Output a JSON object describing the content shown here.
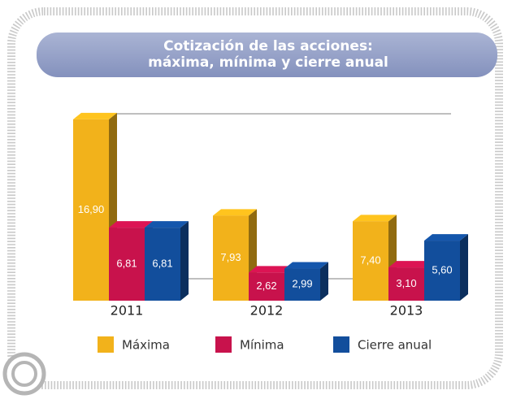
{
  "chart_data": {
    "type": "bar3d",
    "title_lines": [
      "Cotización de las acciones:",
      "máxima, mínima y cierre anual"
    ],
    "categories": [
      "2011",
      "2012",
      "2013"
    ],
    "series": [
      {
        "name": "Máxima",
        "color": "#f2b21b",
        "values": [
          16.9,
          7.93,
          7.4
        ],
        "value_labels": [
          "16,90",
          "7,93",
          "7,40"
        ]
      },
      {
        "name": "Mínima",
        "color": "#c8124c",
        "values": [
          6.81,
          2.62,
          3.1
        ],
        "value_labels": [
          "6,81",
          "2,62",
          "3,10"
        ]
      },
      {
        "name": "Cierre anual",
        "color": "#124e9c",
        "values": [
          6.81,
          2.99,
          5.6
        ],
        "value_labels": [
          "6,81",
          "2,99",
          "5,60"
        ]
      }
    ]
  }
}
